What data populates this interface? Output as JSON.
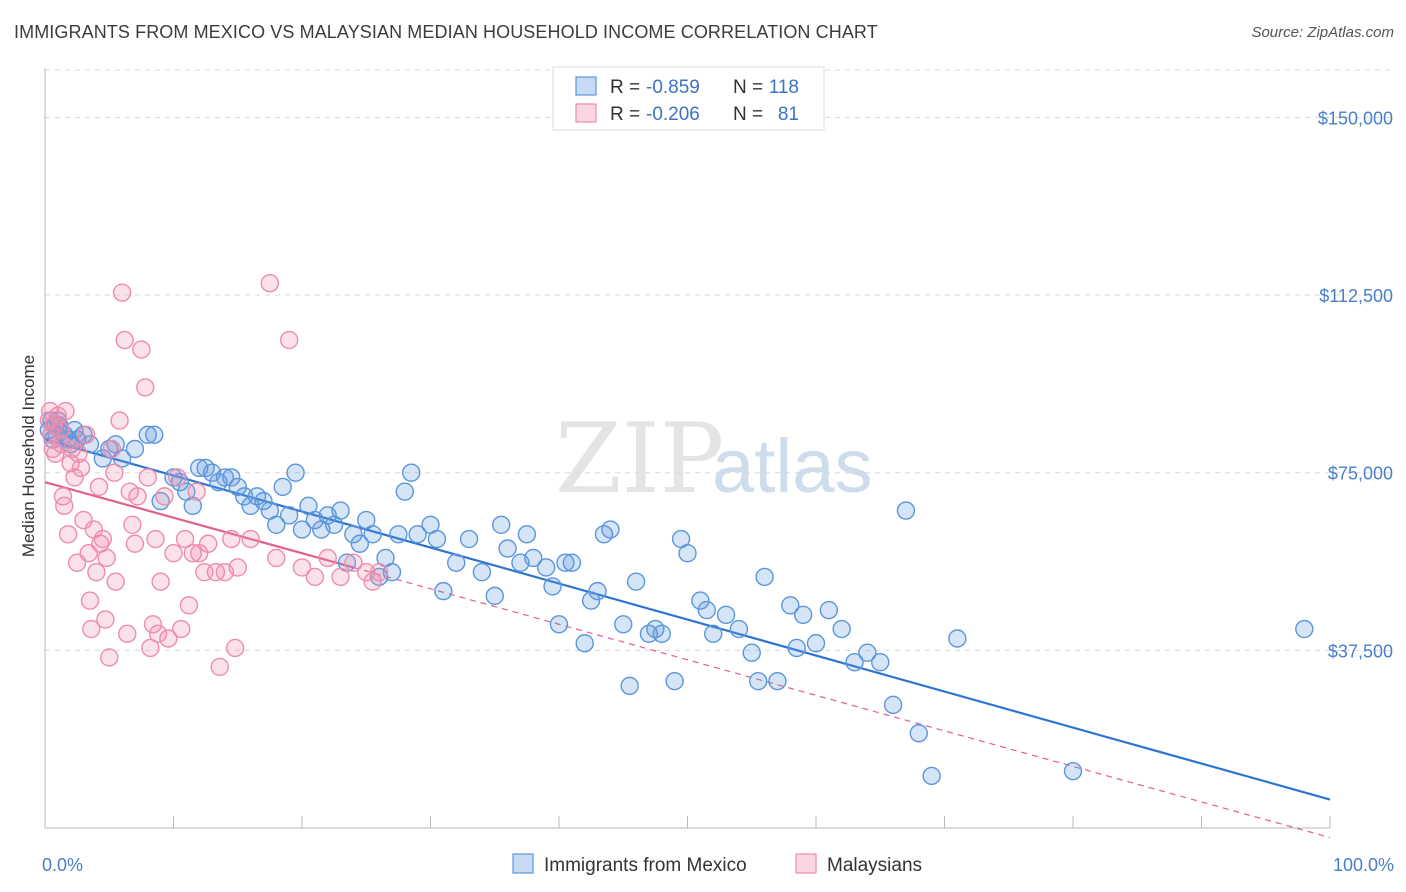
{
  "title": "IMMIGRANTS FROM MEXICO VS MALAYSIAN MEDIAN HOUSEHOLD INCOME CORRELATION CHART",
  "source": "Source: ZipAtlas.com",
  "watermark": {
    "zip": "ZIP",
    "atlas": "atlas"
  },
  "chart_data": {
    "type": "scatter",
    "ylabel": "Median Household Income",
    "xlim": [
      0,
      100
    ],
    "ylim": [
      0,
      160000
    ],
    "x_ticks": [
      {
        "value": 0,
        "label": "0.0%"
      },
      {
        "value": 100,
        "label": "100.0%"
      }
    ],
    "y_ticks": [
      {
        "value": 37500,
        "label": "$37,500"
      },
      {
        "value": 75000,
        "label": "$75,000"
      },
      {
        "value": 112500,
        "label": "$112,500"
      },
      {
        "value": 150000,
        "label": "$150,000"
      }
    ],
    "grid": "horizontal dashed",
    "legend_position": "top-center",
    "series": [
      {
        "name": "Immigrants from Mexico",
        "color": "#5b96dc",
        "line_color": "#2f74d0",
        "r_label": "R =",
        "r_value": "-0.859",
        "n_label": "N =",
        "n_value": "118",
        "trend": {
          "x0": 0,
          "y0": 82000,
          "x1": 100,
          "y1": 6000,
          "dashed_from": null
        },
        "points": [
          [
            0.3,
            84000
          ],
          [
            0.5,
            86000
          ],
          [
            0.6,
            82000
          ],
          [
            0.8,
            85000
          ],
          [
            0.9,
            83000
          ],
          [
            1.0,
            86000
          ],
          [
            1.1,
            85000
          ],
          [
            1.2,
            84000
          ],
          [
            1.5,
            83000
          ],
          [
            1.8,
            82000
          ],
          [
            2.0,
            81000
          ],
          [
            2.3,
            84000
          ],
          [
            2.5,
            82000
          ],
          [
            3.0,
            83000
          ],
          [
            3.5,
            81000
          ],
          [
            4.5,
            78000
          ],
          [
            5.0,
            80000
          ],
          [
            5.5,
            81000
          ],
          [
            6.0,
            78000
          ],
          [
            7.0,
            80000
          ],
          [
            8.0,
            83000
          ],
          [
            8.5,
            83000
          ],
          [
            9.0,
            69000
          ],
          [
            10.0,
            74000
          ],
          [
            10.5,
            73000
          ],
          [
            11.0,
            71000
          ],
          [
            11.5,
            68000
          ],
          [
            12.0,
            76000
          ],
          [
            12.5,
            76000
          ],
          [
            13.0,
            75000
          ],
          [
            13.5,
            73000
          ],
          [
            14.0,
            74000
          ],
          [
            14.5,
            74000
          ],
          [
            15.0,
            72000
          ],
          [
            15.5,
            70000
          ],
          [
            16.0,
            68000
          ],
          [
            16.5,
            70000
          ],
          [
            17.0,
            69000
          ],
          [
            17.5,
            67000
          ],
          [
            18.0,
            64000
          ],
          [
            18.5,
            72000
          ],
          [
            19.0,
            66000
          ],
          [
            19.5,
            75000
          ],
          [
            20.0,
            63000
          ],
          [
            20.5,
            68000
          ],
          [
            21.0,
            65000
          ],
          [
            21.5,
            63000
          ],
          [
            22.0,
            66000
          ],
          [
            22.5,
            64000
          ],
          [
            23.0,
            67000
          ],
          [
            23.5,
            56000
          ],
          [
            24.0,
            62000
          ],
          [
            24.5,
            60000
          ],
          [
            25.0,
            65000
          ],
          [
            25.5,
            62000
          ],
          [
            26.0,
            53000
          ],
          [
            26.5,
            57000
          ],
          [
            27.0,
            54000
          ],
          [
            27.5,
            62000
          ],
          [
            28.0,
            71000
          ],
          [
            28.5,
            75000
          ],
          [
            29.0,
            62000
          ],
          [
            30.0,
            64000
          ],
          [
            30.5,
            61000
          ],
          [
            31.0,
            50000
          ],
          [
            32.0,
            56000
          ],
          [
            33.0,
            61000
          ],
          [
            34.0,
            54000
          ],
          [
            35.0,
            49000
          ],
          [
            35.5,
            64000
          ],
          [
            36.0,
            59000
          ],
          [
            37.0,
            56000
          ],
          [
            37.5,
            62000
          ],
          [
            38.0,
            57000
          ],
          [
            39.0,
            55000
          ],
          [
            39.5,
            51000
          ],
          [
            40.0,
            43000
          ],
          [
            40.5,
            56000
          ],
          [
            41.0,
            56000
          ],
          [
            42.0,
            39000
          ],
          [
            42.5,
            48000
          ],
          [
            43.0,
            50000
          ],
          [
            43.5,
            62000
          ],
          [
            44.0,
            63000
          ],
          [
            45.0,
            43000
          ],
          [
            45.5,
            30000
          ],
          [
            46.0,
            52000
          ],
          [
            47.0,
            41000
          ],
          [
            47.5,
            42000
          ],
          [
            48.0,
            41000
          ],
          [
            49.0,
            31000
          ],
          [
            49.5,
            61000
          ],
          [
            50.0,
            58000
          ],
          [
            51.0,
            48000
          ],
          [
            51.5,
            46000
          ],
          [
            52.0,
            41000
          ],
          [
            53.0,
            45000
          ],
          [
            54.0,
            42000
          ],
          [
            55.0,
            37000
          ],
          [
            55.5,
            31000
          ],
          [
            56.0,
            53000
          ],
          [
            57.0,
            31000
          ],
          [
            58.0,
            47000
          ],
          [
            58.5,
            38000
          ],
          [
            59.0,
            45000
          ],
          [
            60.0,
            39000
          ],
          [
            61.0,
            46000
          ],
          [
            62.0,
            42000
          ],
          [
            63.0,
            35000
          ],
          [
            64.0,
            37000
          ],
          [
            65.0,
            35000
          ],
          [
            66.0,
            26000
          ],
          [
            67.0,
            67000
          ],
          [
            68.0,
            20000
          ],
          [
            69.0,
            11000
          ],
          [
            71.0,
            40000
          ],
          [
            80.0,
            12000
          ],
          [
            98.0,
            42000
          ]
        ]
      },
      {
        "name": "Malaysians",
        "color": "#ee8cac",
        "line_color": "#e0608f",
        "r_label": "R =",
        "r_value": "-0.206",
        "n_label": "N =",
        "n_value": "81",
        "trend": {
          "x0": 0,
          "y0": 73000,
          "x1": 100,
          "y1": -2000,
          "dashed_from": 24
        },
        "points": [
          [
            0.3,
            86000
          ],
          [
            0.4,
            88000
          ],
          [
            0.5,
            83000
          ],
          [
            0.6,
            80000
          ],
          [
            0.7,
            85000
          ],
          [
            0.8,
            79000
          ],
          [
            1.0,
            87000
          ],
          [
            1.2,
            84000
          ],
          [
            1.3,
            81000
          ],
          [
            1.4,
            70000
          ],
          [
            1.5,
            68000
          ],
          [
            1.6,
            88000
          ],
          [
            1.8,
            62000
          ],
          [
            2.0,
            77000
          ],
          [
            2.1,
            80000
          ],
          [
            2.3,
            74000
          ],
          [
            2.5,
            56000
          ],
          [
            2.6,
            79000
          ],
          [
            2.8,
            76000
          ],
          [
            3.0,
            65000
          ],
          [
            3.2,
            83000
          ],
          [
            3.4,
            58000
          ],
          [
            3.5,
            48000
          ],
          [
            3.6,
            42000
          ],
          [
            3.8,
            63000
          ],
          [
            4.0,
            54000
          ],
          [
            4.2,
            72000
          ],
          [
            4.3,
            60000
          ],
          [
            4.5,
            61000
          ],
          [
            4.7,
            44000
          ],
          [
            4.8,
            57000
          ],
          [
            5.0,
            36000
          ],
          [
            5.2,
            80000
          ],
          [
            5.4,
            75000
          ],
          [
            5.5,
            52000
          ],
          [
            5.8,
            86000
          ],
          [
            6.0,
            113000
          ],
          [
            6.2,
            103000
          ],
          [
            6.4,
            41000
          ],
          [
            6.6,
            71000
          ],
          [
            6.8,
            64000
          ],
          [
            7.0,
            60000
          ],
          [
            7.2,
            70000
          ],
          [
            7.5,
            101000
          ],
          [
            7.8,
            93000
          ],
          [
            8.0,
            74000
          ],
          [
            8.2,
            38000
          ],
          [
            8.4,
            43000
          ],
          [
            8.6,
            61000
          ],
          [
            8.8,
            41000
          ],
          [
            9.0,
            52000
          ],
          [
            9.3,
            70000
          ],
          [
            9.6,
            40000
          ],
          [
            10.0,
            58000
          ],
          [
            10.3,
            74000
          ],
          [
            10.6,
            42000
          ],
          [
            10.9,
            61000
          ],
          [
            11.2,
            47000
          ],
          [
            11.5,
            58000
          ],
          [
            11.8,
            71000
          ],
          [
            12.0,
            58000
          ],
          [
            12.4,
            54000
          ],
          [
            12.7,
            60000
          ],
          [
            13.3,
            54000
          ],
          [
            13.6,
            34000
          ],
          [
            14.0,
            54000
          ],
          [
            14.5,
            61000
          ],
          [
            14.8,
            38000
          ],
          [
            15.0,
            55000
          ],
          [
            16.0,
            61000
          ],
          [
            17.5,
            115000
          ],
          [
            18.0,
            57000
          ],
          [
            19.0,
            103000
          ],
          [
            20.0,
            55000
          ],
          [
            21.0,
            53000
          ],
          [
            22.0,
            57000
          ],
          [
            23.0,
            53000
          ],
          [
            24.0,
            56000
          ],
          [
            25.0,
            54000
          ],
          [
            25.5,
            52000
          ],
          [
            26.0,
            54000
          ]
        ]
      }
    ]
  }
}
